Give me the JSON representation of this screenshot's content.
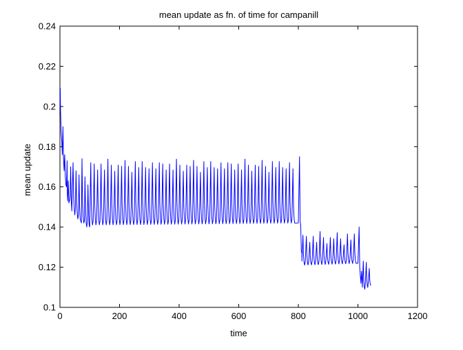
{
  "chart_data": {
    "type": "line",
    "title": "mean update as fn. of time for campanill",
    "xlabel": "time",
    "ylabel": "mean update",
    "xlim": [
      0,
      1200
    ],
    "ylim": [
      0.1,
      0.24
    ],
    "xticks": [
      0,
      200,
      400,
      600,
      800,
      1000,
      1200
    ],
    "yticks": [
      0.1,
      0.12,
      0.14,
      0.16,
      0.18,
      0.2,
      0.22,
      0.24
    ],
    "grid": false,
    "legend": "none",
    "line_color": "#0000ff",
    "series": [
      {
        "x": [
          0,
          1,
          2,
          3,
          4,
          6,
          8,
          10,
          12,
          14,
          16,
          18,
          20,
          22,
          24,
          25,
          26,
          28,
          30,
          32,
          34,
          36,
          38,
          40,
          44,
          46,
          48,
          50,
          52,
          54,
          56,
          58,
          60,
          62,
          64,
          66,
          68,
          70,
          72,
          74,
          76,
          78,
          80,
          82,
          84,
          86,
          88,
          90,
          92,
          94,
          96,
          98,
          100
        ],
        "y": [
          0.2,
          0.209,
          0.198,
          0.193,
          0.187,
          0.183,
          0.176,
          0.19,
          0.174,
          0.168,
          0.176,
          0.165,
          0.161,
          0.16,
          0.173,
          0.156,
          0.153,
          0.163,
          0.152,
          0.153,
          0.155,
          0.17,
          0.153,
          0.148,
          0.172,
          0.155,
          0.149,
          0.146,
          0.15,
          0.168,
          0.152,
          0.147,
          0.144,
          0.146,
          0.166,
          0.15,
          0.144,
          0.143,
          0.142,
          0.174,
          0.151,
          0.145,
          0.142,
          0.143,
          0.165,
          0.149,
          0.142,
          0.14,
          0.143,
          0.161,
          0.147,
          0.141,
          0.14
        ]
      }
    ],
    "segments": [
      {
        "from": 100,
        "to": 800,
        "period": 11.5,
        "peak": 0.172,
        "trough": 0.141,
        "trough_late": 0.142
      },
      {
        "from": 812,
        "to": 1005,
        "period": 11.5,
        "peak": 0.136,
        "trough": 0.121,
        "trough_late": 0.122
      },
      {
        "from": 1015,
        "to": 1048,
        "period": 10,
        "peak": 0.123,
        "trough": 0.109,
        "trough_late": 0.112
      }
    ],
    "transitions": [
      {
        "x": [
          800,
          804,
          806,
          808,
          810,
          812
        ],
        "y": [
          0.142,
          0.175,
          0.143,
          0.141,
          0.128,
          0.127
        ]
      },
      {
        "x": [
          1000,
          1004,
          1006,
          1008,
          1010,
          1012,
          1015
        ],
        "y": [
          0.122,
          0.14,
          0.12,
          0.116,
          0.112,
          0.118,
          0.11
        ]
      }
    ]
  }
}
